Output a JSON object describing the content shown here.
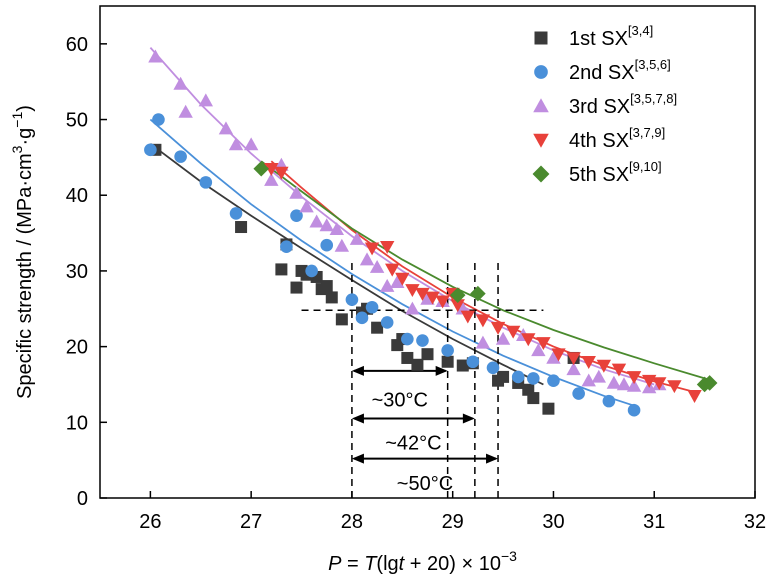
{
  "chart_data": {
    "type": "scatter",
    "xlim": [
      25.5,
      32
    ],
    "ylim": [
      0,
      65
    ],
    "xticks": [
      "26",
      "27",
      "28",
      "29",
      "30",
      "31",
      "32"
    ],
    "yticks": [
      "0",
      "10",
      "20",
      "30",
      "40",
      "50",
      "60"
    ],
    "xlabel": {
      "p": "P",
      "mid": " = ",
      "t1": "T",
      "mid2": "(lg",
      "t2": "t",
      "tail": " + 20) × 10",
      "sup": "−3"
    },
    "ylabel": {
      "main": "Specific strength / (MPa·cm",
      "sup1": "3",
      "mid": "·g",
      "sup2": "−1",
      "tail": ")"
    },
    "legend_position": "top-right",
    "series": [
      {
        "name": "1st SX",
        "refs": "[3,4]",
        "marker": "square",
        "color": "#3a3a3a",
        "points": [
          [
            26.05,
            46.0
          ],
          [
            26.9,
            35.8
          ],
          [
            27.3,
            30.2
          ],
          [
            27.35,
            33.5
          ],
          [
            27.45,
            27.8
          ],
          [
            27.5,
            30.0
          ],
          [
            27.55,
            29.5
          ],
          [
            27.65,
            29.2
          ],
          [
            27.7,
            27.6
          ],
          [
            27.75,
            28.0
          ],
          [
            27.8,
            26.5
          ],
          [
            27.9,
            23.6
          ],
          [
            28.1,
            24.5
          ],
          [
            28.15,
            25.0
          ],
          [
            28.25,
            22.5
          ],
          [
            28.45,
            20.2
          ],
          [
            28.5,
            21.0
          ],
          [
            28.55,
            18.5
          ],
          [
            28.65,
            17.6
          ],
          [
            28.75,
            19.0
          ],
          [
            28.95,
            18.0
          ],
          [
            29.1,
            17.5
          ],
          [
            29.2,
            17.8
          ],
          [
            29.45,
            15.5
          ],
          [
            29.5,
            16.0
          ],
          [
            29.65,
            15.2
          ],
          [
            29.75,
            14.3
          ],
          [
            29.8,
            13.2
          ],
          [
            29.95,
            11.8
          ],
          [
            30.2,
            18.5
          ]
        ],
        "fit": [
          [
            26.0,
            46.8
          ],
          [
            26.5,
            41.8
          ],
          [
            27.0,
            37.3
          ],
          [
            27.5,
            33.0
          ],
          [
            28.0,
            28.8
          ],
          [
            28.5,
            24.7
          ],
          [
            29.0,
            21.0
          ],
          [
            29.5,
            17.6
          ],
          [
            29.9,
            15.0
          ]
        ]
      },
      {
        "name": "2nd SX",
        "refs": "[3,5,6]",
        "marker": "circle",
        "color": "#4a90d9",
        "points": [
          [
            26.0,
            46.0
          ],
          [
            26.08,
            50.0
          ],
          [
            26.3,
            45.1
          ],
          [
            26.55,
            41.7
          ],
          [
            26.85,
            37.6
          ],
          [
            27.35,
            33.2
          ],
          [
            27.45,
            37.3
          ],
          [
            27.6,
            30.0
          ],
          [
            27.75,
            33.4
          ],
          [
            28.0,
            26.2
          ],
          [
            28.1,
            23.8
          ],
          [
            28.2,
            25.2
          ],
          [
            28.35,
            23.2
          ],
          [
            28.55,
            21.0
          ],
          [
            28.7,
            20.8
          ],
          [
            28.95,
            19.5
          ],
          [
            29.2,
            18.0
          ],
          [
            29.4,
            17.2
          ],
          [
            29.65,
            16.0
          ],
          [
            29.8,
            15.8
          ],
          [
            30.0,
            15.5
          ],
          [
            30.25,
            13.8
          ],
          [
            30.55,
            12.8
          ],
          [
            30.8,
            11.6
          ]
        ],
        "fit": [
          [
            26.0,
            50.0
          ],
          [
            26.5,
            44.2
          ],
          [
            27.0,
            38.8
          ],
          [
            27.5,
            34.0
          ],
          [
            28.0,
            29.6
          ],
          [
            28.5,
            25.6
          ],
          [
            29.0,
            22.0
          ],
          [
            29.5,
            18.8
          ],
          [
            30.0,
            16.0
          ],
          [
            30.5,
            13.5
          ],
          [
            30.8,
            12.2
          ]
        ]
      },
      {
        "name": "3rd SX",
        "refs": "[3,5,7,8]",
        "marker": "triangle-up",
        "color": "#c08ee0",
        "points": [
          [
            26.05,
            58.3
          ],
          [
            26.3,
            54.7
          ],
          [
            26.35,
            51.0
          ],
          [
            26.55,
            52.5
          ],
          [
            26.75,
            48.8
          ],
          [
            26.85,
            46.7
          ],
          [
            27.0,
            46.7
          ],
          [
            27.2,
            42.0
          ],
          [
            27.3,
            44.0
          ],
          [
            27.45,
            40.3
          ],
          [
            27.55,
            38.5
          ],
          [
            27.65,
            36.5
          ],
          [
            27.75,
            36.0
          ],
          [
            27.85,
            35.5
          ],
          [
            27.9,
            33.3
          ],
          [
            28.05,
            34.2
          ],
          [
            28.15,
            31.5
          ],
          [
            28.25,
            30.5
          ],
          [
            28.35,
            28.0
          ],
          [
            28.45,
            28.5
          ],
          [
            28.6,
            25.0
          ],
          [
            28.75,
            26.3
          ],
          [
            28.9,
            26.0
          ],
          [
            29.1,
            25.0
          ],
          [
            29.3,
            20.5
          ],
          [
            29.5,
            21.0
          ],
          [
            29.7,
            21.5
          ],
          [
            29.85,
            19.5
          ],
          [
            30.0,
            18.5
          ],
          [
            30.2,
            17.0
          ],
          [
            30.35,
            15.5
          ],
          [
            30.45,
            16.0
          ],
          [
            30.6,
            15.2
          ],
          [
            30.7,
            15.0
          ],
          [
            30.8,
            14.8
          ],
          [
            30.95,
            14.6
          ],
          [
            31.05,
            15.0
          ]
        ],
        "fit": [
          [
            26.0,
            59.5
          ],
          [
            26.5,
            52.0
          ],
          [
            27.0,
            45.5
          ],
          [
            27.5,
            39.8
          ],
          [
            28.0,
            34.6
          ],
          [
            28.5,
            30.0
          ],
          [
            29.0,
            26.0
          ],
          [
            29.5,
            22.5
          ],
          [
            30.0,
            19.5
          ],
          [
            30.5,
            17.0
          ],
          [
            31.0,
            15.0
          ]
        ]
      },
      {
        "name": "4th SX",
        "refs": "[3,7,9]",
        "marker": "triangle-down",
        "color": "#e8413a",
        "points": [
          [
            27.2,
            43.5
          ],
          [
            27.3,
            43.0
          ],
          [
            28.2,
            33.0
          ],
          [
            28.35,
            33.2
          ],
          [
            28.4,
            30.2
          ],
          [
            28.5,
            29.0
          ],
          [
            28.6,
            27.5
          ],
          [
            28.7,
            27.0
          ],
          [
            28.8,
            26.5
          ],
          [
            28.9,
            26.0
          ],
          [
            29.0,
            27.0
          ],
          [
            29.05,
            25.5
          ],
          [
            29.15,
            24.0
          ],
          [
            29.3,
            23.5
          ],
          [
            29.45,
            22.5
          ],
          [
            29.6,
            22.0
          ],
          [
            29.75,
            21.0
          ],
          [
            29.9,
            20.5
          ],
          [
            30.05,
            19.0
          ],
          [
            30.2,
            18.5
          ],
          [
            30.35,
            18.0
          ],
          [
            30.5,
            17.5
          ],
          [
            30.65,
            17.0
          ],
          [
            30.8,
            16.0
          ],
          [
            30.95,
            15.5
          ],
          [
            31.05,
            15.2
          ],
          [
            31.2,
            14.8
          ],
          [
            31.4,
            13.5
          ]
        ],
        "fit": [
          [
            27.2,
            44.5
          ],
          [
            27.5,
            41.0
          ],
          [
            28.0,
            35.4
          ],
          [
            28.5,
            30.6
          ],
          [
            29.0,
            26.5
          ],
          [
            29.5,
            23.0
          ],
          [
            30.0,
            20.0
          ],
          [
            30.5,
            17.5
          ],
          [
            31.0,
            15.4
          ],
          [
            31.4,
            14.0
          ]
        ]
      },
      {
        "name": "5th SX",
        "refs": "[9,10]",
        "marker": "diamond",
        "color": "#4a8a2e",
        "points": [
          [
            27.1,
            43.5
          ],
          [
            29.05,
            26.8
          ],
          [
            29.25,
            27.0
          ],
          [
            31.5,
            15.0
          ],
          [
            31.55,
            15.2
          ]
        ],
        "fit": [
          [
            27.1,
            44.5
          ],
          [
            27.5,
            40.5
          ],
          [
            28.0,
            35.6
          ],
          [
            28.5,
            31.5
          ],
          [
            29.0,
            27.9
          ],
          [
            29.5,
            24.8
          ],
          [
            30.0,
            22.2
          ],
          [
            30.5,
            19.9
          ],
          [
            31.0,
            17.8
          ],
          [
            31.55,
            15.6
          ]
        ]
      }
    ],
    "annotations": {
      "hline": {
        "y": 24.8,
        "x_from": 27.5,
        "x_to": 29.9
      },
      "vlines": [
        28.0,
        28.95,
        29.22,
        29.45
      ],
      "vline_y_from": 0,
      "vline_y_to": 31.5,
      "arrows": [
        {
          "x_from": 28.0,
          "x_to": 28.95,
          "y": 16.8,
          "label": "~30°C",
          "label_y": 13.0
        },
        {
          "x_from": 28.0,
          "x_to": 29.22,
          "y": 10.5,
          "label": "~42°C",
          "label_y": 7.3
        },
        {
          "x_from": 28.0,
          "x_to": 29.45,
          "y": 5.2,
          "label": "~50°C",
          "label_y": 2.0
        }
      ]
    }
  }
}
